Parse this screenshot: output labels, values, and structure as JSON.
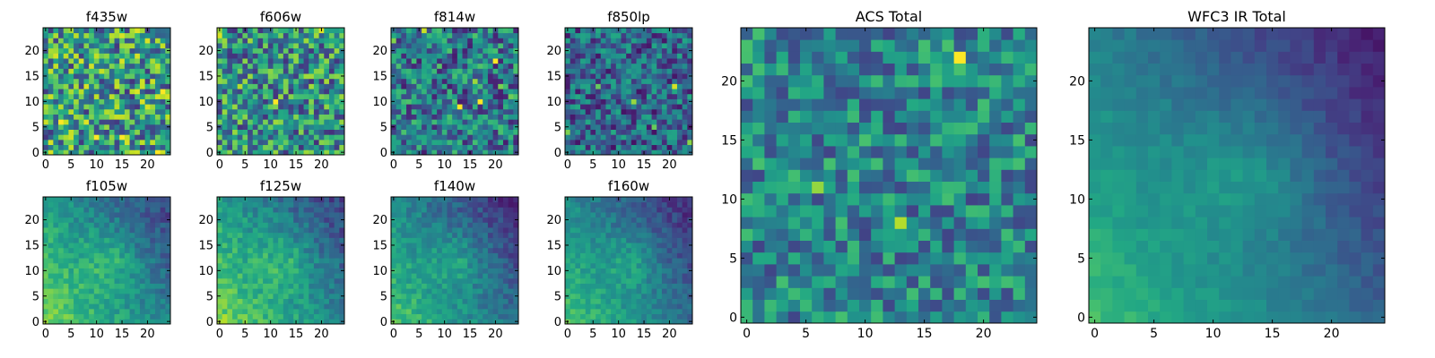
{
  "chart_data": [
    {
      "type": "heatmap",
      "title": "f435w",
      "grid_size": [
        25,
        25
      ],
      "colormap": "viridis",
      "x_ticks": [
        0,
        5,
        10,
        15,
        20
      ],
      "y_ticks": [
        0,
        5,
        10,
        15,
        20
      ],
      "texture": "noisy",
      "mean_level": 0.55,
      "variation": 0.5
    },
    {
      "type": "heatmap",
      "title": "f606w",
      "grid_size": [
        25,
        25
      ],
      "colormap": "viridis",
      "x_ticks": [
        0,
        5,
        10,
        15,
        20
      ],
      "y_ticks": [
        0,
        5,
        10,
        15,
        20
      ],
      "texture": "noisy",
      "mean_level": 0.5,
      "variation": 0.45
    },
    {
      "type": "heatmap",
      "title": "f814w",
      "grid_size": [
        25,
        25
      ],
      "colormap": "viridis",
      "x_ticks": [
        0,
        5,
        10,
        15,
        20
      ],
      "y_ticks": [
        0,
        5,
        10,
        15,
        20
      ],
      "texture": "noisy",
      "mean_level": 0.4,
      "variation": 0.4
    },
    {
      "type": "heatmap",
      "title": "f850lp",
      "grid_size": [
        25,
        25
      ],
      "colormap": "viridis",
      "x_ticks": [
        0,
        5,
        10,
        15,
        20
      ],
      "y_ticks": [
        0,
        5,
        10,
        15,
        20
      ],
      "texture": "noisy",
      "mean_level": 0.33,
      "variation": 0.35
    },
    {
      "type": "heatmap",
      "title": "f105w",
      "grid_size": [
        25,
        25
      ],
      "colormap": "viridis",
      "x_ticks": [
        0,
        5,
        10,
        15,
        20
      ],
      "y_ticks": [
        0,
        5,
        10,
        15,
        20
      ],
      "texture": "smooth",
      "mean_level": 0.5,
      "variation": 0.2
    },
    {
      "type": "heatmap",
      "title": "f125w",
      "grid_size": [
        25,
        25
      ],
      "colormap": "viridis",
      "x_ticks": [
        0,
        5,
        10,
        15,
        20
      ],
      "y_ticks": [
        0,
        5,
        10,
        15,
        20
      ],
      "texture": "smooth",
      "mean_level": 0.5,
      "variation": 0.22
    },
    {
      "type": "heatmap",
      "title": "f140w",
      "grid_size": [
        25,
        25
      ],
      "colormap": "viridis",
      "x_ticks": [
        0,
        5,
        10,
        15,
        20
      ],
      "y_ticks": [
        0,
        5,
        10,
        15,
        20
      ],
      "texture": "smooth",
      "mean_level": 0.42,
      "variation": 0.2
    },
    {
      "type": "heatmap",
      "title": "f160w",
      "grid_size": [
        25,
        25
      ],
      "colormap": "viridis",
      "x_ticks": [
        0,
        5,
        10,
        15,
        20
      ],
      "y_ticks": [
        0,
        5,
        10,
        15,
        20
      ],
      "texture": "smooth",
      "mean_level": 0.42,
      "variation": 0.18
    },
    {
      "type": "heatmap",
      "title": "ACS Total",
      "grid_size": [
        25,
        25
      ],
      "colormap": "viridis",
      "x_ticks": [
        0,
        5,
        10,
        15,
        20
      ],
      "y_ticks": [
        0,
        5,
        10,
        15,
        20
      ],
      "texture": "noisy",
      "mean_level": 0.45,
      "variation": 0.32
    },
    {
      "type": "heatmap",
      "title": "WFC3 IR Total",
      "grid_size": [
        25,
        25
      ],
      "colormap": "viridis",
      "x_ticks": [
        0,
        5,
        10,
        15,
        20
      ],
      "y_ticks": [
        0,
        5,
        10,
        15,
        20
      ],
      "texture": "smooth",
      "mean_level": 0.38,
      "variation": 0.1
    }
  ]
}
